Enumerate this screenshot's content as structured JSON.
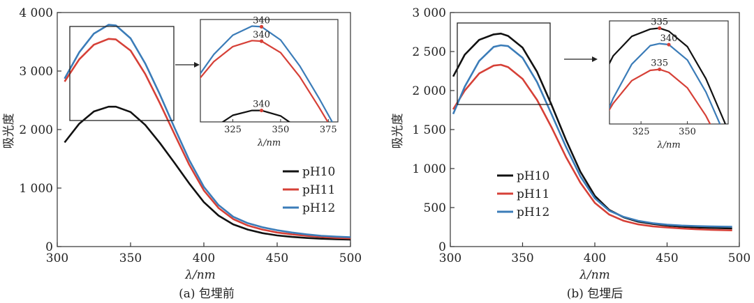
{
  "chart_data": [
    {
      "type": "line",
      "caption": "(a) 包埋前",
      "xlabel": "λ/nm",
      "ylabel": "吸光度",
      "xlim": [
        300,
        500
      ],
      "ylim": [
        0,
        4000
      ],
      "x_ticks": [
        "300",
        "350",
        "400",
        "450",
        "500"
      ],
      "y_ticks": [
        "0",
        "1 000",
        "2 000",
        "3 000",
        "4 000"
      ],
      "legend_position": "right",
      "series": [
        {
          "name": "pH10",
          "color": "#111111",
          "points": [
            [
              305,
              1780
            ],
            [
              315,
              2100
            ],
            [
              325,
              2310
            ],
            [
              335,
              2390
            ],
            [
              340,
              2390
            ],
            [
              350,
              2300
            ],
            [
              360,
              2080
            ],
            [
              370,
              1770
            ],
            [
              380,
              1430
            ],
            [
              390,
              1080
            ],
            [
              400,
              760
            ],
            [
              410,
              530
            ],
            [
              420,
              380
            ],
            [
              430,
              290
            ],
            [
              440,
              230
            ],
            [
              450,
              190
            ],
            [
              460,
              165
            ],
            [
              470,
              148
            ],
            [
              480,
              135
            ],
            [
              490,
              125
            ],
            [
              500,
              120
            ]
          ]
        },
        {
          "name": "pH11",
          "color": "#d64037",
          "points": [
            [
              305,
              2820
            ],
            [
              315,
              3200
            ],
            [
              325,
              3450
            ],
            [
              335,
              3550
            ],
            [
              340,
              3540
            ],
            [
              350,
              3350
            ],
            [
              360,
              2950
            ],
            [
              370,
              2450
            ],
            [
              380,
              1920
            ],
            [
              390,
              1400
            ],
            [
              400,
              960
            ],
            [
              410,
              660
            ],
            [
              420,
              470
            ],
            [
              430,
              360
            ],
            [
              440,
              290
            ],
            [
              450,
              240
            ],
            [
              460,
              210
            ],
            [
              470,
              185
            ],
            [
              480,
              165
            ],
            [
              490,
              150
            ],
            [
              500,
              140
            ]
          ]
        },
        {
          "name": "pH12",
          "color": "#3b7cb8",
          "points": [
            [
              305,
              2870
            ],
            [
              315,
              3320
            ],
            [
              325,
              3640
            ],
            [
              335,
              3790
            ],
            [
              340,
              3780
            ],
            [
              350,
              3560
            ],
            [
              360,
              3130
            ],
            [
              370,
              2600
            ],
            [
              380,
              2030
            ],
            [
              390,
              1480
            ],
            [
              400,
              1020
            ],
            [
              410,
              710
            ],
            [
              420,
              510
            ],
            [
              430,
              400
            ],
            [
              440,
              330
            ],
            [
              450,
              280
            ],
            [
              460,
              240
            ],
            [
              470,
              210
            ],
            [
              480,
              185
            ],
            [
              490,
              170
            ],
            [
              500,
              160
            ]
          ]
        }
      ],
      "inset": {
        "xlim": [
          308,
          380
        ],
        "ylim": [
          2200,
          3900
        ],
        "x_ticks": [
          "325",
          "350",
          "375"
        ],
        "xlabel": "λ/nm",
        "annotations": [
          "340",
          "340",
          "340"
        ]
      }
    },
    {
      "type": "line",
      "caption": "(b) 包埋后",
      "xlabel": "λ/nm",
      "ylabel": "吸光度",
      "xlim": [
        300,
        500
      ],
      "ylim": [
        0,
        3000
      ],
      "x_ticks": [
        "300",
        "350",
        "400",
        "450",
        "500"
      ],
      "y_ticks": [
        "0",
        "500",
        "1 000",
        "1 500",
        "2 000",
        "2 500",
        "3 000"
      ],
      "legend_position": "center",
      "series": [
        {
          "name": "pH10",
          "color": "#111111",
          "points": [
            [
              302,
              2180
            ],
            [
              310,
              2460
            ],
            [
              320,
              2650
            ],
            [
              330,
              2720
            ],
            [
              335,
              2730
            ],
            [
              340,
              2700
            ],
            [
              350,
              2550
            ],
            [
              360,
              2240
            ],
            [
              370,
              1820
            ],
            [
              380,
              1370
            ],
            [
              390,
              960
            ],
            [
              400,
              650
            ],
            [
              410,
              470
            ],
            [
              420,
              375
            ],
            [
              430,
              320
            ],
            [
              440,
              290
            ],
            [
              450,
              270
            ],
            [
              460,
              255
            ],
            [
              470,
              245
            ],
            [
              480,
              240
            ],
            [
              490,
              235
            ],
            [
              495,
              232
            ]
          ]
        },
        {
          "name": "pH11",
          "color": "#d64037",
          "points": [
            [
              302,
              1760
            ],
            [
              310,
              2000
            ],
            [
              320,
              2220
            ],
            [
              330,
              2320
            ],
            [
              335,
              2330
            ],
            [
              340,
              2300
            ],
            [
              350,
              2150
            ],
            [
              360,
              1880
            ],
            [
              370,
              1530
            ],
            [
              380,
              1150
            ],
            [
              390,
              820
            ],
            [
              400,
              560
            ],
            [
              410,
              410
            ],
            [
              420,
              330
            ],
            [
              430,
              285
            ],
            [
              440,
              260
            ],
            [
              450,
              245
            ],
            [
              460,
              232
            ],
            [
              470,
              222
            ],
            [
              480,
              215
            ],
            [
              490,
              210
            ],
            [
              495,
              208
            ]
          ]
        },
        {
          "name": "pH12",
          "color": "#3b7cb8",
          "points": [
            [
              302,
              1700
            ],
            [
              310,
              2050
            ],
            [
              320,
              2380
            ],
            [
              330,
              2560
            ],
            [
              335,
              2580
            ],
            [
              340,
              2570
            ],
            [
              350,
              2420
            ],
            [
              360,
              2110
            ],
            [
              370,
              1700
            ],
            [
              380,
              1280
            ],
            [
              390,
              900
            ],
            [
              400,
              620
            ],
            [
              410,
              460
            ],
            [
              420,
              380
            ],
            [
              430,
              330
            ],
            [
              440,
              300
            ],
            [
              450,
              280
            ],
            [
              460,
              270
            ],
            [
              470,
              263
            ],
            [
              480,
              258
            ],
            [
              490,
              255
            ],
            [
              495,
              254
            ]
          ]
        }
      ],
      "inset": {
        "xlim": [
          308,
          372
        ],
        "ylim": [
          1800,
          2800
        ],
        "x_ticks": [
          "325",
          "350"
        ],
        "xlabel": "λ/nm",
        "annotations": [
          "335",
          "340",
          "335"
        ]
      }
    }
  ]
}
